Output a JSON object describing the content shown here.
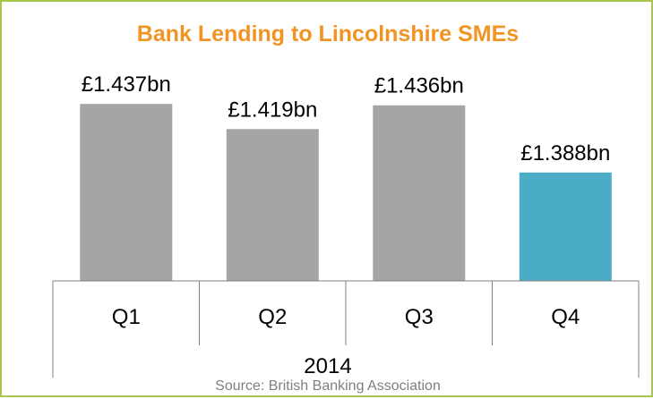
{
  "chart_data": {
    "type": "bar",
    "title": "Bank Lending to Lincolnshire SMEs",
    "categories": [
      "Q1",
      "Q2",
      "Q3",
      "Q4"
    ],
    "group_label": "2014",
    "values": [
      1.437,
      1.419,
      1.436,
      1.388
    ],
    "data_labels": [
      "£1.437bn",
      "£1.419bn",
      "£1.436bn",
      "£1.388bn"
    ],
    "unit": "£bn",
    "bar_colors": [
      "#a5a5a5",
      "#a5a5a5",
      "#a5a5a5",
      "#4bacc6"
    ],
    "title_color": "#f29423",
    "frame_color": "#a8c64c",
    "grid": false,
    "legend": "none",
    "source": "Source: British Banking Association"
  }
}
